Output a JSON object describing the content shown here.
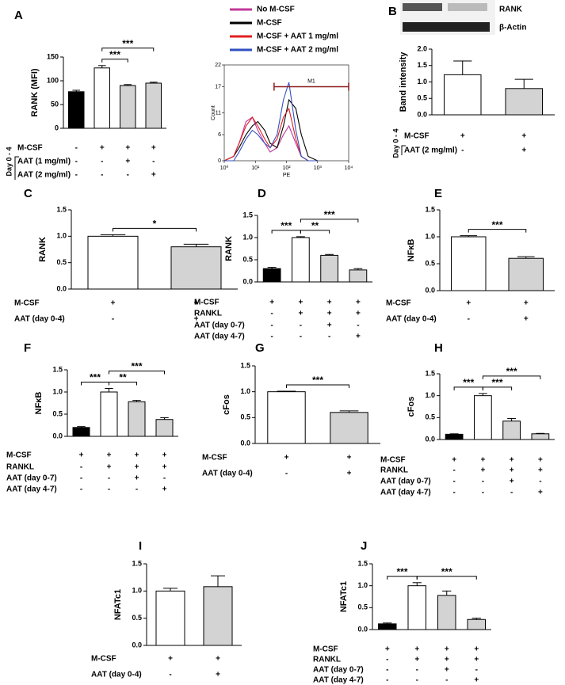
{
  "chart_data": [
    {
      "type": "bar",
      "label": "A",
      "ylabel": "RANK (MFI)",
      "values": [
        77,
        127,
        90,
        95
      ],
      "errors": [
        3,
        5,
        2,
        2
      ],
      "colors": [
        "#000000",
        "#ffffff",
        "#d3d3d3",
        "#d3d3d3"
      ],
      "ylim": [
        0,
        150
      ],
      "yticks": [
        0,
        50,
        100,
        150
      ],
      "conditions": [
        {
          "label": "M-CSF",
          "marks": [
            "-",
            "+",
            "+",
            "+"
          ]
        },
        {
          "label": "AAT (1 mg/ml)",
          "marks": [
            "-",
            "-",
            "+",
            "-"
          ]
        },
        {
          "label": "AAT (2 mg/ml)",
          "marks": [
            "-",
            "-",
            "-",
            "+"
          ]
        }
      ],
      "bracket_label": "Day 0 - 4",
      "significance": [
        {
          "from": 1,
          "to": 2,
          "label": "***"
        },
        {
          "from": 1,
          "to": 3,
          "label": "***"
        }
      ]
    },
    {
      "type": "line",
      "xlabel": "PE",
      "ylabel": "Count",
      "log_x": true,
      "x": [
        1,
        2,
        3,
        5,
        8,
        12,
        20,
        30,
        50,
        80,
        120,
        200,
        300,
        500,
        1000
      ],
      "series": [
        {
          "name": "No M-CSF",
          "color": "#c0399a",
          "values": [
            0,
            1,
            4,
            9,
            10,
            7,
            4,
            2,
            3,
            6,
            8,
            4,
            1,
            0,
            0
          ]
        },
        {
          "name": "M-CSF",
          "color": "#000000",
          "values": [
            0,
            1,
            3,
            6,
            8,
            9,
            7,
            4,
            3,
            8,
            14,
            12,
            6,
            1,
            0
          ]
        },
        {
          "name": "M-CSF + AAT 1 mg/ml",
          "color": "#e02020",
          "values": [
            0,
            1,
            4,
            8,
            10,
            8,
            5,
            3,
            5,
            10,
            12,
            5,
            1,
            0,
            0
          ]
        },
        {
          "name": "M-CSF + AAT 2 mg/ml",
          "color": "#3050c0",
          "values": [
            0,
            0,
            2,
            5,
            7,
            6,
            4,
            3,
            6,
            14,
            18,
            7,
            1,
            0,
            0
          ]
        }
      ],
      "xlim": [
        1,
        10000
      ],
      "xticks": [
        {
          "value": 1,
          "label": "10⁰"
        },
        {
          "value": 10,
          "label": "10¹"
        },
        {
          "value": 100,
          "label": "10²"
        },
        {
          "value": 1000,
          "label": "10³"
        },
        {
          "value": 10000,
          "label": "10⁴"
        }
      ],
      "ylim": [
        0,
        22
      ],
      "yticks": [
        0,
        6,
        11,
        17,
        22
      ],
      "gate": {
        "label": "M1",
        "range": [
          40,
          10000
        ],
        "y": 17,
        "color": "#8b1a1a"
      }
    },
    {
      "type": "bar",
      "label": "B",
      "ylabel": "Band intensity",
      "blot_labels": [
        "RANK",
        "β-Actin"
      ],
      "values": [
        1.22,
        0.8
      ],
      "errors": [
        0.42,
        0.28
      ],
      "colors": [
        "#ffffff",
        "#d3d3d3"
      ],
      "ylim": [
        0,
        2
      ],
      "yticks": [
        {
          "value": 0,
          "label": "0.0"
        },
        0.5,
        {
          "value": 1,
          "label": "1.0"
        },
        1.5,
        {
          "value": 2,
          "label": "2.0"
        }
      ],
      "conditions": [
        {
          "label": "M-CSF",
          "marks": [
            "+",
            "+"
          ]
        },
        {
          "label": "AAT (2 mg/ml)",
          "marks": [
            "-",
            "+"
          ]
        }
      ],
      "bracket_label": "Day 0 - 4",
      "significance": []
    },
    {
      "type": "bar",
      "label": "C",
      "ylabel": "RANK",
      "values": [
        1.0,
        0.8
      ],
      "errors": [
        0.03,
        0.05
      ],
      "colors": [
        "#ffffff",
        "#d3d3d3"
      ],
      "ylim": [
        0,
        1.5
      ],
      "yticks": [
        {
          "value": 0,
          "label": "0.0"
        },
        0.5,
        {
          "value": 1,
          "label": "1.0"
        },
        1.5
      ],
      "conditions": [
        {
          "label": "M-CSF",
          "marks": [
            "+",
            "+"
          ]
        },
        {
          "label": "AAT (day 0-4)",
          "marks": [
            "-",
            "+"
          ]
        }
      ],
      "significance": [
        {
          "from": 0,
          "to": 1,
          "label": "*"
        }
      ]
    },
    {
      "type": "bar",
      "label": "D",
      "ylabel": "RANK",
      "values": [
        0.3,
        1.0,
        0.6,
        0.27
      ],
      "errors": [
        0.03,
        0.02,
        0.02,
        0.03
      ],
      "colors": [
        "#000000",
        "#ffffff",
        "#d3d3d3",
        "#d3d3d3"
      ],
      "ylim": [
        0,
        1.5
      ],
      "yticks": [
        {
          "value": 0,
          "label": "0.0"
        },
        0.5,
        {
          "value": 1,
          "label": "1.0"
        },
        1.5
      ],
      "conditions": [
        {
          "label": "M-CSF",
          "marks": [
            "+",
            "+",
            "+",
            "+"
          ]
        },
        {
          "label": "RANKL",
          "marks": [
            "-",
            "+",
            "+",
            "+"
          ]
        },
        {
          "label": "AAT (day 0-7)",
          "marks": [
            "-",
            "-",
            "+",
            "-"
          ]
        },
        {
          "label": "AAT (day 4-7)",
          "marks": [
            "-",
            "-",
            "-",
            "+"
          ]
        }
      ],
      "significance": [
        {
          "from": 0,
          "to": 1,
          "label": "***"
        },
        {
          "from": 1,
          "to": 2,
          "label": "**"
        },
        {
          "from": 1,
          "to": 3,
          "label": "***"
        }
      ]
    },
    {
      "type": "bar",
      "label": "E",
      "ylabel": "NFκB",
      "values": [
        1.0,
        0.6
      ],
      "errors": [
        0.02,
        0.03
      ],
      "colors": [
        "#ffffff",
        "#d3d3d3"
      ],
      "ylim": [
        0,
        1.5
      ],
      "yticks": [
        {
          "value": 0,
          "label": "0.0"
        },
        0.5,
        {
          "value": 1,
          "label": "1.0"
        },
        1.5
      ],
      "conditions": [
        {
          "label": "M-CSF",
          "marks": [
            "+",
            "+"
          ]
        },
        {
          "label": "AAT (day 0-4)",
          "marks": [
            "-",
            "+"
          ]
        }
      ],
      "significance": [
        {
          "from": 0,
          "to": 1,
          "label": "***"
        }
      ]
    },
    {
      "type": "bar",
      "label": "F",
      "ylabel": "NFκB",
      "values": [
        0.2,
        1.0,
        0.78,
        0.38
      ],
      "errors": [
        0.02,
        0.08,
        0.03,
        0.04
      ],
      "colors": [
        "#000000",
        "#ffffff",
        "#d3d3d3",
        "#d3d3d3"
      ],
      "ylim": [
        0,
        1.5
      ],
      "yticks": [
        {
          "value": 0,
          "label": "0.0"
        },
        0.5,
        {
          "value": 1,
          "label": "1.0"
        },
        1.5
      ],
      "conditions": [
        {
          "label": "M-CSF",
          "marks": [
            "+",
            "+",
            "+",
            "+"
          ]
        },
        {
          "label": "RANKL",
          "marks": [
            "-",
            "+",
            "+",
            "+"
          ]
        },
        {
          "label": "AAT (day 0-7)",
          "marks": [
            "-",
            "-",
            "+",
            "-"
          ]
        },
        {
          "label": "AAT (day 4-7)",
          "marks": [
            "-",
            "-",
            "-",
            "+"
          ]
        }
      ],
      "significance": [
        {
          "from": 0,
          "to": 1,
          "label": "***"
        },
        {
          "from": 1,
          "to": 2,
          "label": "**"
        },
        {
          "from": 1,
          "to": 3,
          "label": "***"
        }
      ]
    },
    {
      "type": "bar",
      "label": "G",
      "ylabel": "cFos",
      "values": [
        1.0,
        0.6
      ],
      "errors": [
        0.01,
        0.03
      ],
      "colors": [
        "#ffffff",
        "#d3d3d3"
      ],
      "ylim": [
        0,
        1.5
      ],
      "yticks": [
        {
          "value": 0,
          "label": "0.0"
        },
        0.5,
        {
          "value": 1,
          "label": "1.0"
        },
        1.5
      ],
      "conditions": [
        {
          "label": "M-CSF",
          "marks": [
            "+",
            "+"
          ]
        },
        {
          "label": "AAT (day 0-4)",
          "marks": [
            "-",
            "+"
          ]
        }
      ],
      "significance": [
        {
          "from": 0,
          "to": 1,
          "label": "***"
        }
      ]
    },
    {
      "type": "bar",
      "label": "H",
      "ylabel": "cFos",
      "values": [
        0.12,
        1.0,
        0.42,
        0.13
      ],
      "errors": [
        0.01,
        0.05,
        0.06,
        0.01
      ],
      "colors": [
        "#000000",
        "#ffffff",
        "#d3d3d3",
        "#d3d3d3"
      ],
      "ylim": [
        0,
        1.5
      ],
      "yticks": [
        {
          "value": 0,
          "label": "0.0"
        },
        0.5,
        {
          "value": 1,
          "label": "1.0"
        },
        1.5
      ],
      "conditions": [
        {
          "label": "M-CSF",
          "marks": [
            "+",
            "+",
            "+",
            "+"
          ]
        },
        {
          "label": "RANKL",
          "marks": [
            "-",
            "+",
            "+",
            "+"
          ]
        },
        {
          "label": "AAT (day 0-7)",
          "marks": [
            "-",
            "-",
            "+",
            "-"
          ]
        },
        {
          "label": "AAT (day 4-7)",
          "marks": [
            "-",
            "-",
            "-",
            "+"
          ]
        }
      ],
      "significance": [
        {
          "from": 0,
          "to": 1,
          "label": "***"
        },
        {
          "from": 1,
          "to": 2,
          "label": "***"
        },
        {
          "from": 1,
          "to": 3,
          "label": "***"
        }
      ]
    },
    {
      "type": "bar",
      "label": "I",
      "ylabel": "NFATc1",
      "values": [
        1.0,
        1.08
      ],
      "errors": [
        0.05,
        0.2
      ],
      "colors": [
        "#ffffff",
        "#d3d3d3"
      ],
      "ylim": [
        0,
        1.5
      ],
      "yticks": [
        {
          "value": 0,
          "label": "0.0"
        },
        0.5,
        {
          "value": 1,
          "label": "1.0"
        },
        1.5
      ],
      "conditions": [
        {
          "label": "M-CSF",
          "marks": [
            "+",
            "+"
          ]
        },
        {
          "label": "AAT (day 0-4)",
          "marks": [
            "-",
            "+"
          ]
        }
      ],
      "significance": []
    },
    {
      "type": "bar",
      "label": "J",
      "ylabel": "NFATc1",
      "values": [
        0.13,
        1.0,
        0.78,
        0.23
      ],
      "errors": [
        0.02,
        0.07,
        0.1,
        0.03
      ],
      "colors": [
        "#000000",
        "#ffffff",
        "#d3d3d3",
        "#d3d3d3"
      ],
      "ylim": [
        0,
        1.5
      ],
      "yticks": [
        {
          "value": 0,
          "label": "0.0"
        },
        0.5,
        {
          "value": 1,
          "label": "1.0"
        },
        1.5
      ],
      "conditions": [
        {
          "label": "M-CSF",
          "marks": [
            "+",
            "+",
            "+",
            "+"
          ]
        },
        {
          "label": "RANKL",
          "marks": [
            "-",
            "+",
            "+",
            "+"
          ]
        },
        {
          "label": "AAT (day 0-7)",
          "marks": [
            "-",
            "-",
            "+",
            "-"
          ]
        },
        {
          "label": "AAT (day 4-7)",
          "marks": [
            "-",
            "-",
            "-",
            "+"
          ]
        }
      ],
      "significance": [
        {
          "from": 0,
          "to": 1,
          "label": "***"
        },
        {
          "from": 1,
          "to": 3,
          "label": "***"
        }
      ]
    }
  ]
}
